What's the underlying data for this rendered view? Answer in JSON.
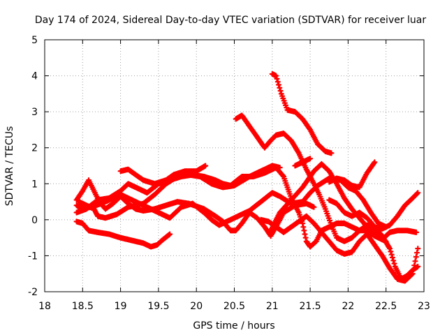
{
  "chart_data": {
    "type": "scatter",
    "title": "Day 174 of 2024, Sidereal Day-to-day VTEC variation (SDTVAR) for receiver luar",
    "xlabel": "GPS time / hours",
    "ylabel": "SDTVAR / TECUs",
    "xlim": [
      18,
      23
    ],
    "ylim": [
      -2,
      5
    ],
    "xticks": [
      18,
      18.5,
      19,
      19.5,
      20,
      20.5,
      21,
      21.5,
      22,
      22.5,
      23
    ],
    "yticks": [
      -2,
      -1,
      0,
      1,
      2,
      3,
      4,
      5
    ],
    "grid": true,
    "marker": "+",
    "color": "#ff0000",
    "series": [
      {
        "name": "s1",
        "points": [
          [
            18.42,
            -0.05
          ],
          [
            18.5,
            -0.1
          ],
          [
            18.58,
            -0.3
          ],
          [
            18.7,
            -0.35
          ],
          [
            18.85,
            -0.4
          ],
          [
            19.0,
            -0.5
          ],
          [
            19.1,
            -0.55
          ],
          [
            19.2,
            -0.6
          ],
          [
            19.3,
            -0.65
          ],
          [
            19.4,
            -0.75
          ],
          [
            19.48,
            -0.7
          ],
          [
            19.56,
            -0.55
          ],
          [
            19.65,
            -0.4
          ]
        ]
      },
      {
        "name": "s2",
        "points": [
          [
            18.42,
            0.55
          ],
          [
            18.5,
            0.8
          ],
          [
            18.58,
            1.1
          ],
          [
            18.65,
            0.8
          ],
          [
            18.72,
            0.5
          ],
          [
            18.8,
            0.3
          ],
          [
            18.9,
            0.45
          ],
          [
            19.0,
            0.65
          ],
          [
            19.1,
            0.45
          ],
          [
            19.2,
            0.3
          ],
          [
            19.3,
            0.25
          ],
          [
            19.45,
            0.3
          ],
          [
            19.6,
            0.4
          ],
          [
            19.75,
            0.5
          ],
          [
            19.9,
            0.45
          ],
          [
            20.1,
            0.3
          ],
          [
            20.25,
            0.1
          ],
          [
            20.35,
            -0.05
          ],
          [
            20.45,
            -0.3
          ],
          [
            20.52,
            -0.3
          ],
          [
            20.6,
            -0.1
          ],
          [
            20.7,
            0.2
          ],
          [
            20.8,
            0.05
          ],
          [
            20.9,
            -0.2
          ],
          [
            20.98,
            -0.45
          ],
          [
            21.05,
            -0.2
          ],
          [
            21.15,
            0.2
          ],
          [
            21.3,
            0.4
          ],
          [
            21.45,
            0.45
          ],
          [
            21.55,
            0.35
          ]
        ]
      },
      {
        "name": "s3",
        "points": [
          [
            18.42,
            0.4
          ],
          [
            18.5,
            0.3
          ],
          [
            18.6,
            0.35
          ],
          [
            18.75,
            0.45
          ],
          [
            18.9,
            0.6
          ],
          [
            19.0,
            0.7
          ],
          [
            19.15,
            0.55
          ],
          [
            19.3,
            0.4
          ],
          [
            19.5,
            0.2
          ],
          [
            19.65,
            0.05
          ],
          [
            19.8,
            0.35
          ],
          [
            19.95,
            0.45
          ],
          [
            20.1,
            0.2
          ],
          [
            20.2,
            0.0
          ],
          [
            20.3,
            -0.15
          ],
          [
            20.4,
            -0.05
          ],
          [
            20.55,
            0.1
          ],
          [
            20.7,
            0.25
          ],
          [
            20.85,
            0.5
          ],
          [
            21.0,
            0.75
          ],
          [
            21.1,
            0.65
          ],
          [
            21.25,
            0.45
          ],
          [
            21.4,
            0.5
          ],
          [
            21.5,
            0.75
          ],
          [
            21.6,
            0.95
          ],
          [
            21.75,
            1.15
          ],
          [
            21.9,
            1.1
          ],
          [
            22.0,
            0.9
          ],
          [
            22.1,
            0.8
          ],
          [
            22.2,
            0.55
          ],
          [
            22.3,
            0.2
          ],
          [
            22.4,
            -0.1
          ],
          [
            22.5,
            -0.2
          ]
        ]
      },
      {
        "name": "s4",
        "points": [
          [
            18.42,
            0.2
          ],
          [
            18.55,
            0.3
          ],
          [
            18.7,
            0.55
          ],
          [
            18.85,
            0.6
          ],
          [
            19.0,
            0.8
          ],
          [
            19.1,
            1.0
          ],
          [
            19.2,
            0.9
          ],
          [
            19.35,
            0.75
          ],
          [
            19.5,
            1.0
          ],
          [
            19.65,
            1.1
          ],
          [
            19.8,
            1.2
          ],
          [
            19.95,
            1.25
          ],
          [
            20.1,
            1.2
          ],
          [
            20.25,
            1.1
          ],
          [
            20.35,
            1.0
          ],
          [
            20.45,
            0.95
          ],
          [
            20.6,
            1.2
          ],
          [
            20.75,
            1.2
          ],
          [
            20.9,
            1.3
          ],
          [
            21.05,
            1.45
          ],
          [
            21.15,
            1.2
          ],
          [
            21.2,
            0.9
          ],
          [
            21.25,
            0.6
          ],
          [
            21.35,
            0.2
          ],
          [
            21.4,
            -0.1
          ],
          [
            21.45,
            -0.6
          ],
          [
            21.5,
            -0.75
          ],
          [
            21.58,
            -0.6
          ],
          [
            21.65,
            -0.3
          ],
          [
            21.75,
            -0.2
          ],
          [
            21.85,
            -0.1
          ],
          [
            21.95,
            -0.1
          ],
          [
            22.05,
            -0.2
          ],
          [
            22.15,
            -0.3
          ],
          [
            22.25,
            -0.3
          ],
          [
            22.35,
            -0.45
          ],
          [
            22.45,
            -0.55
          ],
          [
            22.55,
            -0.35
          ],
          [
            22.65,
            -0.3
          ],
          [
            22.78,
            -0.3
          ],
          [
            22.9,
            -0.35
          ]
        ]
      },
      {
        "name": "s5",
        "points": [
          [
            19.0,
            1.35
          ],
          [
            19.1,
            1.4
          ],
          [
            19.2,
            1.25
          ],
          [
            19.3,
            1.1
          ],
          [
            19.45,
            1.0
          ],
          [
            19.6,
            1.1
          ],
          [
            19.7,
            1.25
          ],
          [
            19.85,
            1.35
          ],
          [
            20.0,
            1.35
          ],
          [
            20.12,
            1.5
          ]
        ]
      },
      {
        "name": "s6",
        "points": [
          [
            18.45,
            0.5
          ],
          [
            18.55,
            0.4
          ],
          [
            18.65,
            0.3
          ],
          [
            18.7,
            0.1
          ],
          [
            18.8,
            0.05
          ],
          [
            18.95,
            0.15
          ],
          [
            19.1,
            0.35
          ],
          [
            19.3,
            0.45
          ],
          [
            19.45,
            0.7
          ],
          [
            19.6,
            1.0
          ],
          [
            19.75,
            1.2
          ],
          [
            19.9,
            1.25
          ],
          [
            20.05,
            1.2
          ],
          [
            20.2,
            1.0
          ],
          [
            20.35,
            0.9
          ],
          [
            20.5,
            0.95
          ],
          [
            20.7,
            1.2
          ],
          [
            20.85,
            1.35
          ],
          [
            21.0,
            1.5
          ],
          [
            21.1,
            1.45
          ]
        ]
      },
      {
        "name": "s7",
        "points": [
          [
            20.52,
            2.8
          ],
          [
            20.6,
            2.9
          ],
          [
            20.7,
            2.6
          ],
          [
            20.8,
            2.3
          ],
          [
            20.9,
            2.0
          ],
          [
            20.98,
            2.2
          ],
          [
            21.05,
            2.35
          ],
          [
            21.15,
            2.4
          ],
          [
            21.25,
            2.2
          ],
          [
            21.35,
            1.85
          ],
          [
            21.45,
            1.4
          ],
          [
            21.55,
            1.0
          ],
          [
            21.62,
            0.7
          ],
          [
            21.7,
            0.3
          ],
          [
            21.78,
            -0.15
          ],
          [
            21.85,
            -0.5
          ],
          [
            21.95,
            -0.6
          ],
          [
            22.05,
            -0.5
          ],
          [
            22.15,
            -0.3
          ],
          [
            22.25,
            -0.15
          ],
          [
            22.35,
            -0.2
          ],
          [
            22.45,
            -0.45
          ],
          [
            22.55,
            -0.8
          ],
          [
            22.62,
            -1.3
          ],
          [
            22.7,
            -1.65
          ],
          [
            22.78,
            -1.55
          ],
          [
            22.85,
            -1.4
          ],
          [
            22.92,
            -1.3
          ]
        ]
      },
      {
        "name": "s8",
        "points": [
          [
            21.0,
            4.05
          ],
          [
            21.05,
            4.0
          ],
          [
            21.12,
            3.5
          ],
          [
            21.2,
            3.05
          ],
          [
            21.3,
            3.0
          ],
          [
            21.4,
            2.8
          ],
          [
            21.5,
            2.5
          ],
          [
            21.6,
            2.1
          ],
          [
            21.7,
            1.9
          ],
          [
            21.78,
            1.85
          ]
        ]
      },
      {
        "name": "s9",
        "points": [
          [
            20.98,
            -0.3
          ],
          [
            21.1,
            0.2
          ],
          [
            21.25,
            0.55
          ],
          [
            21.4,
            0.9
          ],
          [
            21.55,
            1.35
          ],
          [
            21.65,
            1.55
          ],
          [
            21.75,
            1.35
          ],
          [
            21.85,
            1.0
          ],
          [
            21.95,
            0.6
          ],
          [
            22.05,
            0.3
          ],
          [
            22.15,
            0.05
          ],
          [
            22.25,
            -0.2
          ],
          [
            22.35,
            -0.3
          ],
          [
            22.45,
            -0.55
          ],
          [
            22.5,
            -0.6
          ]
        ]
      },
      {
        "name": "s10",
        "points": [
          [
            20.85,
            0.0
          ],
          [
            20.95,
            -0.05
          ],
          [
            21.05,
            -0.2
          ],
          [
            21.15,
            -0.35
          ],
          [
            21.25,
            -0.2
          ],
          [
            21.35,
            -0.05
          ],
          [
            21.45,
            0.1
          ],
          [
            21.55,
            -0.1
          ],
          [
            21.65,
            -0.35
          ],
          [
            21.75,
            -0.6
          ],
          [
            21.85,
            -0.85
          ],
          [
            21.95,
            -0.95
          ],
          [
            22.05,
            -0.9
          ],
          [
            22.15,
            -0.6
          ],
          [
            22.25,
            -0.4
          ],
          [
            22.35,
            -0.7
          ],
          [
            22.45,
            -1.0
          ],
          [
            22.55,
            -1.35
          ],
          [
            22.65,
            -1.65
          ],
          [
            22.75,
            -1.7
          ],
          [
            22.85,
            -1.5
          ],
          [
            22.92,
            -0.8
          ]
        ]
      },
      {
        "name": "s11",
        "points": [
          [
            21.3,
            1.5
          ],
          [
            21.4,
            1.6
          ],
          [
            21.5,
            1.7
          ]
        ]
      },
      {
        "name": "s12",
        "points": [
          [
            21.75,
            1.05
          ],
          [
            21.85,
            1.15
          ],
          [
            21.95,
            1.1
          ],
          [
            22.05,
            0.95
          ],
          [
            22.15,
            0.9
          ],
          [
            22.25,
            1.3
          ],
          [
            22.35,
            1.6
          ]
        ]
      },
      {
        "name": "s13",
        "points": [
          [
            21.75,
            0.55
          ],
          [
            21.85,
            0.45
          ],
          [
            21.95,
            0.2
          ],
          [
            22.05,
            0.1
          ],
          [
            22.15,
            0.2
          ],
          [
            22.25,
            0.05
          ],
          [
            22.35,
            -0.2
          ],
          [
            22.45,
            -0.25
          ],
          [
            22.55,
            -0.15
          ],
          [
            22.65,
            0.1
          ],
          [
            22.75,
            0.4
          ],
          [
            22.85,
            0.6
          ],
          [
            22.92,
            0.75
          ]
        ]
      }
    ]
  }
}
